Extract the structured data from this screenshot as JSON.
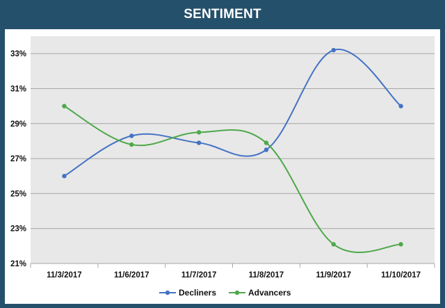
{
  "chart_data": {
    "type": "line",
    "title": "SENTIMENT",
    "categories": [
      "11/3/2017",
      "11/6/2017",
      "11/7/2017",
      "11/8/2017",
      "11/9/2017",
      "11/10/2017"
    ],
    "series": [
      {
        "name": "Decliners",
        "color": "#4472c4",
        "values": [
          26.0,
          28.3,
          27.9,
          27.5,
          33.2,
          30.0
        ]
      },
      {
        "name": "Advancers",
        "color": "#4ea84a",
        "values": [
          30.0,
          27.8,
          28.5,
          27.9,
          22.1,
          22.1
        ]
      }
    ],
    "y_ticks": [
      "21%",
      "23%",
      "25%",
      "27%",
      "29%",
      "31%",
      "33%"
    ],
    "ylim": [
      21,
      34
    ],
    "smooth": true,
    "grid": true,
    "legend_position": "bottom",
    "plot_background": "#e8e8e8"
  }
}
